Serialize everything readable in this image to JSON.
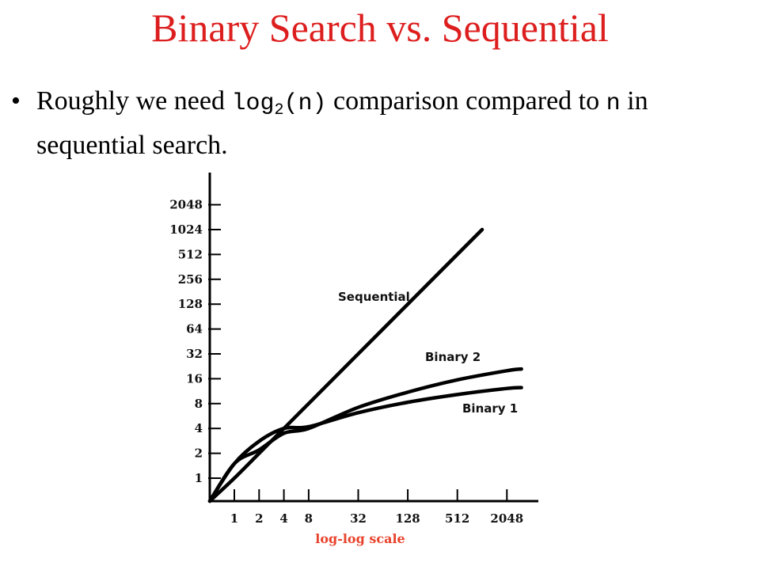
{
  "slide": {
    "title": "Binary Search vs. Sequential",
    "bullet": {
      "marker": "•",
      "part1": "Roughly we need ",
      "code1": "log",
      "code1_sub": "2",
      "code1_rest": "(n)",
      "part2": " comparison compared to ",
      "code2": "n",
      "part3": " in sequential search."
    }
  },
  "colors": {
    "title": "#dd1e1e",
    "xlabel": "#e8422b",
    "lines": "#000000"
  },
  "chart_data": {
    "type": "line",
    "xlabel": "log-log scale",
    "ylabel": "",
    "x_scale": "log2",
    "y_scale": "log2",
    "x_ticks": [
      1,
      2,
      4,
      8,
      32,
      128,
      512,
      2048
    ],
    "x_tick_labels": [
      "1",
      "2",
      "4",
      "8",
      "32",
      "128",
      "512",
      "2048"
    ],
    "y_ticks": [
      1,
      2,
      4,
      8,
      16,
      32,
      64,
      128,
      256,
      512,
      1024,
      2048
    ],
    "y_tick_labels": [
      "1",
      "2",
      "4",
      "8",
      "16",
      "32",
      "64",
      "128",
      "256",
      "512",
      "1024",
      "2048"
    ],
    "series": [
      {
        "name": "Sequential",
        "x": [
          0.5,
          1,
          2,
          4,
          8,
          64,
          512,
          1024
        ],
        "y": [
          0.5,
          1,
          2,
          4,
          8,
          64,
          512,
          1024
        ]
      },
      {
        "name": "Binary 2",
        "x": [
          0.5,
          1,
          2,
          4,
          8,
          32,
          128,
          512,
          2048,
          3072
        ],
        "y": [
          0.5,
          1.5,
          2.2,
          3.5,
          4,
          7.2,
          11,
          15.5,
          20,
          21
        ]
      },
      {
        "name": "Binary 1",
        "x": [
          0.5,
          1,
          2,
          4,
          8,
          32,
          128,
          512,
          2048,
          3072
        ],
        "y": [
          0.5,
          1.5,
          2.8,
          4,
          4.2,
          6.2,
          8.3,
          10.3,
          12.2,
          12.5
        ]
      }
    ]
  }
}
